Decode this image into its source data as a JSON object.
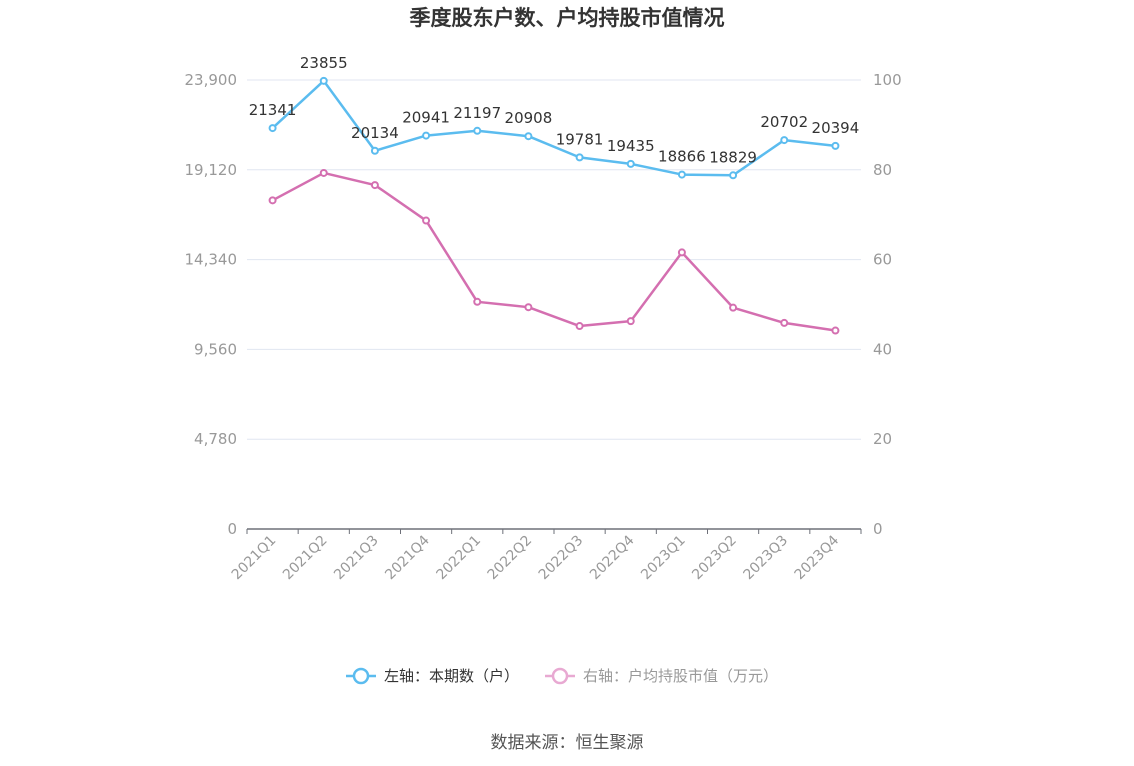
{
  "chart_data": {
    "type": "line",
    "title": "季度股东户数、户均持股市值情况",
    "categories": [
      "2021Q1",
      "2021Q2",
      "2021Q3",
      "2021Q4",
      "2022Q1",
      "2022Q2",
      "2022Q3",
      "2022Q4",
      "2023Q1",
      "2023Q2",
      "2023Q3",
      "2023Q4"
    ],
    "left_axis": {
      "min": 0,
      "max": 23900,
      "ticks": [
        "0",
        "4,780",
        "9,560",
        "14,340",
        "19,120",
        "23,900"
      ]
    },
    "right_axis": {
      "min": 0,
      "max": 100,
      "ticks": [
        "0",
        "20",
        "40",
        "60",
        "80",
        "100"
      ]
    },
    "series": [
      {
        "name": "左轴：本期数（户）",
        "axis": "left",
        "color": "#5bbcef",
        "values": [
          21341,
          23855,
          20134,
          20941,
          21197,
          20908,
          19781,
          19435,
          18866,
          18829,
          20702,
          20394
        ],
        "labels": [
          "21341",
          "23855",
          "20134",
          "20941",
          "21197",
          "20908",
          "19781",
          "19435",
          "18866",
          "18829",
          "20702",
          "20394"
        ]
      },
      {
        "name": "右轴：户均持股市值（万元）",
        "axis": "right",
        "color": "#d46fb0",
        "legend_color": "#e8a9d2",
        "values": [
          73.2,
          79.3,
          76.6,
          68.7,
          50.6,
          49.4,
          45.2,
          46.3,
          61.6,
          49.3,
          45.9,
          44.2
        ]
      }
    ],
    "legend_position": "bottom-center",
    "grid": true
  },
  "source": "数据来源：恒生聚源"
}
